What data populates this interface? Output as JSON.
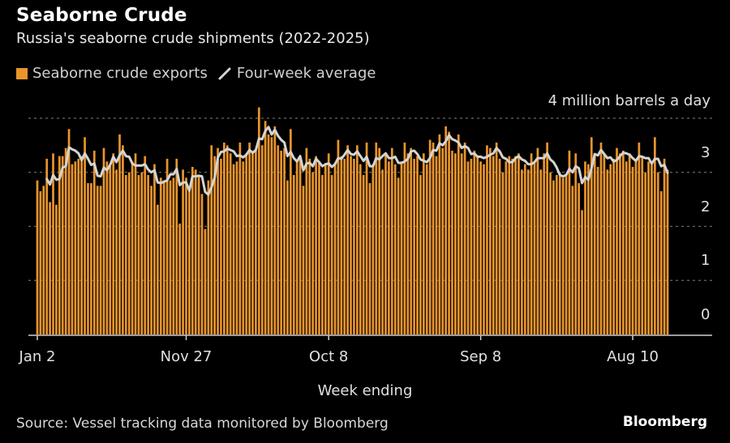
{
  "title": "Seaborne Crude",
  "subtitle": "Russia's seaborne crude shipments (2022-2025)",
  "legend": {
    "bars": "Seaborne crude exports",
    "line": "Four-week average"
  },
  "unit_label": "4 million barrels a day",
  "xlabel": "Week ending",
  "source": "Source: Vessel tracking data monitored by Bloomberg",
  "brand": "Bloomberg",
  "colors": {
    "bar": "#e8942c",
    "line": "#d4d4d4",
    "grid": "#6a6a6a",
    "background": "#000000"
  },
  "chart_data": {
    "type": "bar",
    "title": "Seaborne Crude",
    "subtitle": "Russia's seaborne crude shipments (2022-2025)",
    "xlabel": "Week ending",
    "ylabel": "4 million barrels a day",
    "ylim": [
      0,
      4
    ],
    "yticks": [
      0,
      1,
      2,
      3
    ],
    "ytick_labels": [
      "0",
      "1",
      "2",
      "3"
    ],
    "grid": true,
    "legend_placement": "top-left",
    "xtick_labels": [
      {
        "label": "Jan 2",
        "index": 0
      },
      {
        "label": "Nov 27",
        "index": 47
      },
      {
        "label": "Oct 8",
        "index": 92
      },
      {
        "label": "Sep 8",
        "index": 140
      },
      {
        "label": "Aug 10",
        "index": 188
      }
    ],
    "series": [
      {
        "name": "Seaborne crude exports",
        "type": "bar",
        "values": [
          2.85,
          2.65,
          2.75,
          3.25,
          2.45,
          3.35,
          2.4,
          3.3,
          3.3,
          3.45,
          3.8,
          3.15,
          3.2,
          3.25,
          3.3,
          3.65,
          2.8,
          2.8,
          3.4,
          2.75,
          2.75,
          3.45,
          3.2,
          3.15,
          3.35,
          3.05,
          3.7,
          3.5,
          2.95,
          3.0,
          3.2,
          3.35,
          2.95,
          3.0,
          3.3,
          2.95,
          2.75,
          3.15,
          2.4,
          2.9,
          2.85,
          3.25,
          2.85,
          2.9,
          3.25,
          2.05,
          3.05,
          2.9,
          2.65,
          3.1,
          3.05,
          2.95,
          2.6,
          1.95,
          2.85,
          3.5,
          3.3,
          3.45,
          3.25,
          3.55,
          3.5,
          3.35,
          3.15,
          3.2,
          3.55,
          3.2,
          3.35,
          3.55,
          3.35,
          3.4,
          4.2,
          3.5,
          3.95,
          3.7,
          3.65,
          3.85,
          3.5,
          3.4,
          3.45,
          2.85,
          3.8,
          2.95,
          3.2,
          3.25,
          2.75,
          3.45,
          3.25,
          3.0,
          3.3,
          3.2,
          2.95,
          3.15,
          3.35,
          2.95,
          3.15,
          3.6,
          3.3,
          3.25,
          3.5,
          3.3,
          3.25,
          3.5,
          3.15,
          2.95,
          3.55,
          2.8,
          3.15,
          3.55,
          3.45,
          3.05,
          3.35,
          3.2,
          3.45,
          3.15,
          2.9,
          3.2,
          3.55,
          3.35,
          3.45,
          3.25,
          3.3,
          2.95,
          3.35,
          3.15,
          3.6,
          3.55,
          3.3,
          3.7,
          3.45,
          3.85,
          3.75,
          3.4,
          3.35,
          3.7,
          3.35,
          3.55,
          3.2,
          3.25,
          3.4,
          3.3,
          3.2,
          3.15,
          3.5,
          3.45,
          3.3,
          3.55,
          3.25,
          3.0,
          3.2,
          3.3,
          3.25,
          3.3,
          3.35,
          3.05,
          3.15,
          3.05,
          3.35,
          3.2,
          3.45,
          3.05,
          3.35,
          3.55,
          3.0,
          2.85,
          2.95,
          3.0,
          2.9,
          2.95,
          3.4,
          2.75,
          3.35,
          2.8,
          2.3,
          3.2,
          3.15,
          3.65,
          3.35,
          3.1,
          3.55,
          3.35,
          3.05,
          3.15,
          3.25,
          3.45,
          3.35,
          3.4,
          3.2,
          3.35,
          3.1,
          3.2,
          3.55,
          3.3,
          3.0,
          3.2,
          3.15,
          3.65,
          3.0,
          2.65,
          3.25,
          3.05
        ]
      },
      {
        "name": "Four-week average",
        "type": "line",
        "window": 4,
        "note_start_index": 3
      }
    ]
  }
}
